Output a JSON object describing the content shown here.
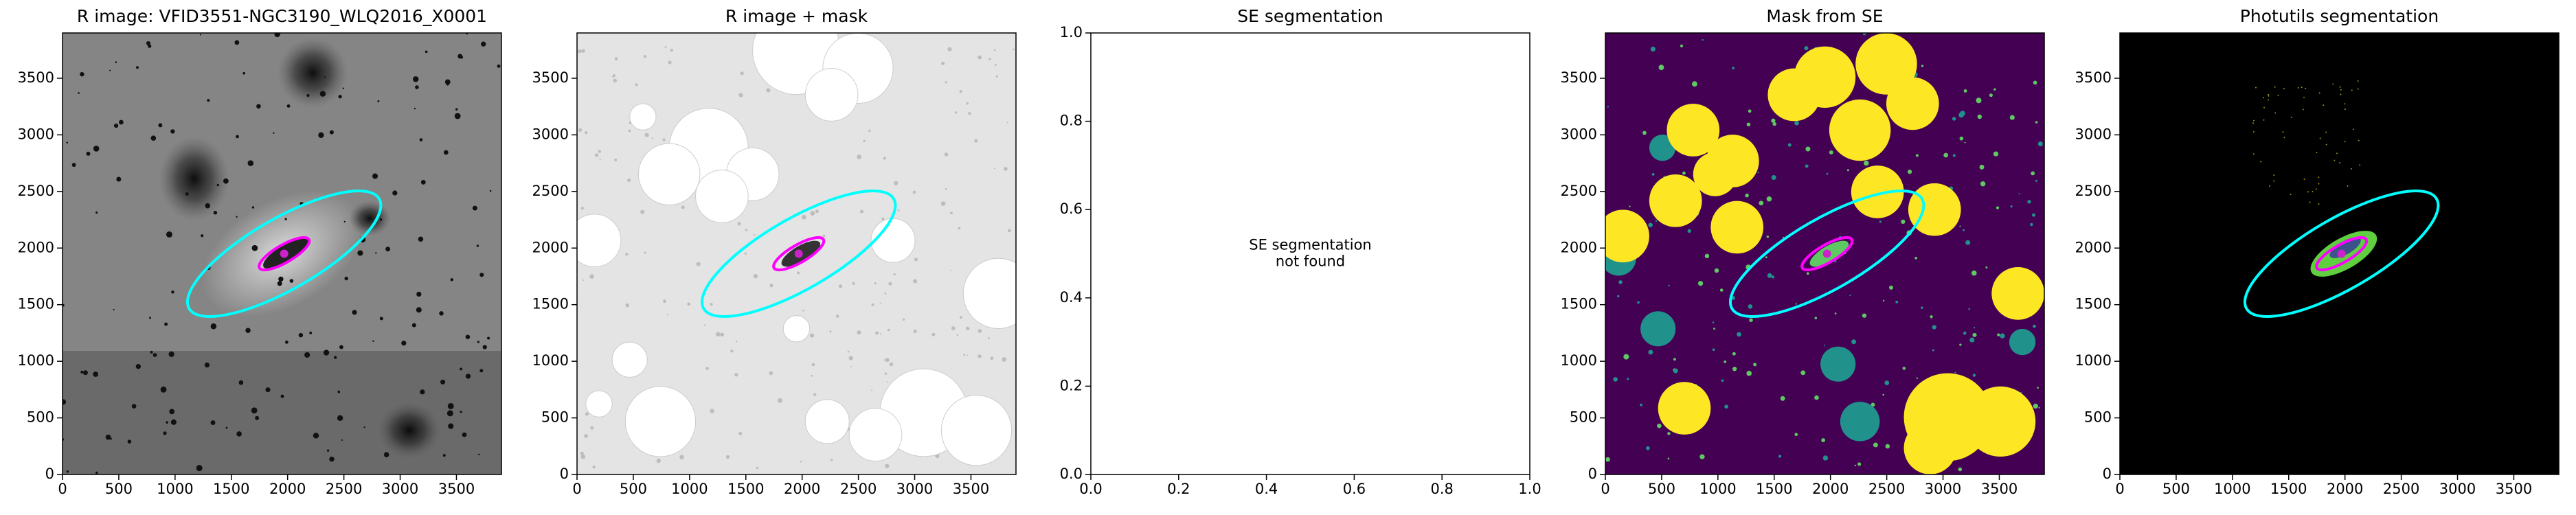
{
  "chart_data": [
    {
      "type": "image",
      "title": "R image: VFID3551-NGC3190_WLQ2016_X0001",
      "xlim": [
        0,
        3900
      ],
      "ylim": [
        0,
        3900
      ],
      "xticks": [
        0,
        500,
        1000,
        1500,
        2000,
        2500,
        3000,
        3500
      ],
      "yticks": [
        0,
        500,
        1000,
        1500,
        2000,
        2500,
        3000,
        3500
      ]
    },
    {
      "type": "image",
      "title": "R image + mask",
      "xlim": [
        0,
        3900
      ],
      "ylim": [
        0,
        3900
      ],
      "xticks": [
        0,
        500,
        1000,
        1500,
        2000,
        2500,
        3000,
        3500
      ],
      "yticks": [
        0,
        500,
        1000,
        1500,
        2000,
        2500,
        3000,
        3500
      ]
    },
    {
      "type": "empty",
      "title": "SE segmentation",
      "annotation": [
        "SE segmentation",
        "not found"
      ],
      "xlim": [
        0,
        1
      ],
      "ylim": [
        0,
        1
      ],
      "xticks": [
        {
          "value": 0,
          "label": "0.0"
        },
        0.2,
        0.4,
        0.6,
        0.8,
        {
          "value": 1,
          "label": "1.0"
        }
      ],
      "yticks": [
        {
          "value": 0,
          "label": "0.0"
        },
        0.2,
        0.4,
        0.6,
        0.8,
        {
          "value": 1,
          "label": "1.0"
        }
      ]
    },
    {
      "type": "image",
      "title": "Mask from SE",
      "xlim": [
        0,
        3900
      ],
      "ylim": [
        0,
        3900
      ],
      "xticks": [
        0,
        500,
        1000,
        1500,
        2000,
        2500,
        3000,
        3500
      ],
      "yticks": [
        0,
        500,
        1000,
        1500,
        2000,
        2500,
        3000,
        3500
      ]
    },
    {
      "type": "image",
      "title": "Photutils segmentation",
      "xlim": [
        0,
        3900
      ],
      "ylim": [
        0,
        3900
      ],
      "xticks": [
        0,
        500,
        1000,
        1500,
        2000,
        2500,
        3000,
        3500
      ],
      "yticks": [
        0,
        500,
        1000,
        1500,
        2000,
        2500,
        3000,
        3500
      ]
    }
  ]
}
